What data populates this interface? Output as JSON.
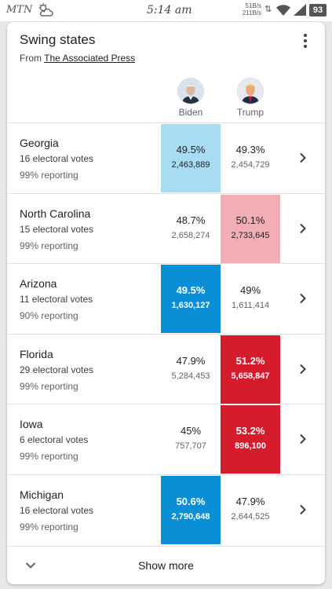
{
  "status_bar": {
    "carrier": "MTN",
    "time": "5:14 am",
    "speed_up": "51B/s",
    "speed_down": "211B/s",
    "battery": "93"
  },
  "card": {
    "title": "Swing states",
    "source_prefix": "From",
    "source_link": "The Associated Press",
    "candidates": {
      "biden": {
        "name": "Biden"
      },
      "trump": {
        "name": "Trump"
      }
    },
    "rows": [
      {
        "state": "Georgia",
        "electoral_votes": "16 electoral votes",
        "reporting": "99% reporting",
        "biden": {
          "pct": "49.5%",
          "votes": "2,463,889"
        },
        "trump": {
          "pct": "49.3%",
          "votes": "2,454,729"
        }
      },
      {
        "state": "North Carolina",
        "electoral_votes": "15 electoral votes",
        "reporting": "99% reporting",
        "biden": {
          "pct": "48.7%",
          "votes": "2,658,274"
        },
        "trump": {
          "pct": "50.1%",
          "votes": "2,733,645"
        }
      },
      {
        "state": "Arizona",
        "electoral_votes": "11 electoral votes",
        "reporting": "90% reporting",
        "biden": {
          "pct": "49.5%",
          "votes": "1,630,127"
        },
        "trump": {
          "pct": "49%",
          "votes": "1,611,414"
        }
      },
      {
        "state": "Florida",
        "electoral_votes": "29 electoral votes",
        "reporting": "99% reporting",
        "biden": {
          "pct": "47.9%",
          "votes": "5,284,453"
        },
        "trump": {
          "pct": "51.2%",
          "votes": "5,658,847"
        }
      },
      {
        "state": "Iowa",
        "electoral_votes": "6 electoral votes",
        "reporting": "99% reporting",
        "biden": {
          "pct": "45%",
          "votes": "757,707"
        },
        "trump": {
          "pct": "53.2%",
          "votes": "896,100"
        }
      },
      {
        "state": "Michigan",
        "electoral_votes": "16 electoral votes",
        "reporting": "99% reporting",
        "biden": {
          "pct": "50.6%",
          "votes": "2,790,648"
        },
        "trump": {
          "pct": "47.9%",
          "votes": "2,644,525"
        }
      }
    ],
    "show_more": "Show more"
  },
  "colors": {
    "leading_light_blue": "#a7dcf2",
    "leading_light_red": "#f2aeb4",
    "called_blue": "#0a8fd7",
    "called_red": "#d51c2c"
  },
  "icons": [
    "weather-cloud-sun-icon",
    "wifi-icon",
    "signal-icon",
    "more-vert-icon",
    "chevron-right-icon",
    "chevron-down-icon"
  ]
}
